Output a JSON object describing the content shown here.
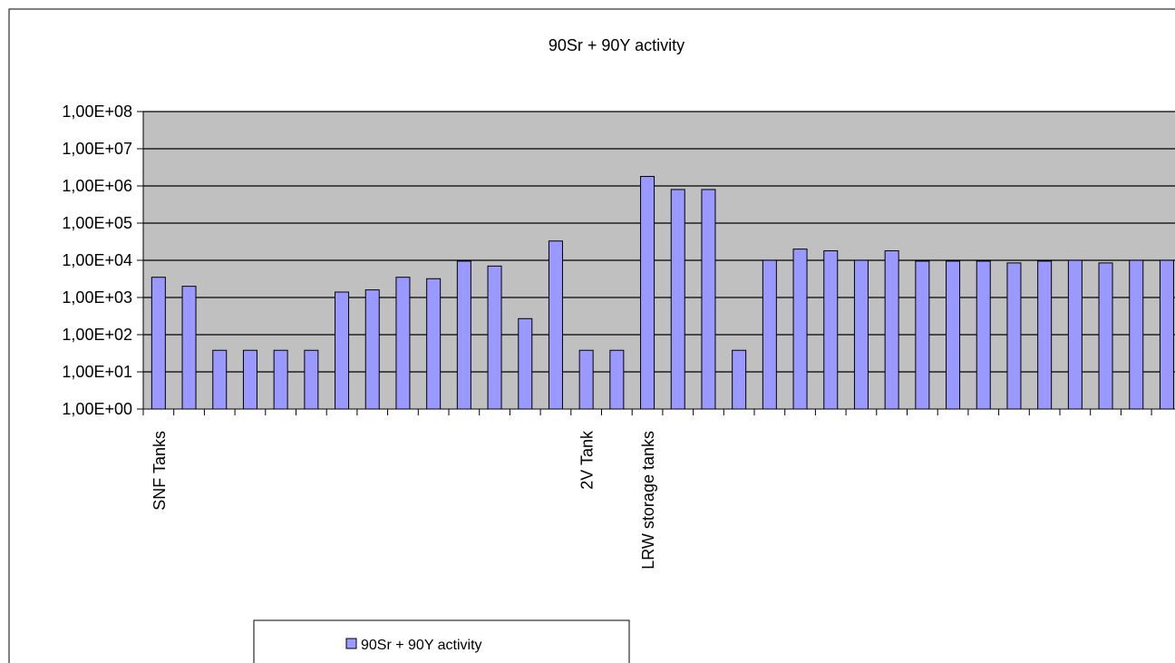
{
  "chart_data": {
    "type": "bar",
    "title": "90Sr + 90Y activity",
    "scale": "log",
    "ylim": [
      1,
      100000000
    ],
    "y_ticks": [
      "1,00E+00",
      "1,00E+01",
      "1,00E+02",
      "1,00E+03",
      "1,00E+04",
      "1,00E+05",
      "1,00E+06",
      "1,00E+07",
      "1,00E+08"
    ],
    "categories": [
      "SNF Tanks",
      "",
      "",
      "",
      "",
      "",
      "",
      "",
      "",
      "",
      "",
      "",
      "",
      "",
      "2V Tank",
      "",
      "LRW storage tanks",
      "",
      "",
      "",
      "",
      "",
      "",
      "",
      "",
      "",
      "",
      "",
      "",
      "",
      "",
      "",
      "",
      ""
    ],
    "series": [
      {
        "name": "90Sr + 90Y activity",
        "color": "#9999ff",
        "values": [
          3500,
          2000,
          38,
          38,
          38,
          38,
          1400,
          1600,
          3500,
          3200,
          9500,
          7000,
          270,
          33000,
          38,
          38,
          1800000,
          800000,
          800000,
          38,
          10000,
          20000,
          18000,
          10000,
          18000,
          9500,
          9500,
          9500,
          8500,
          9500,
          10000,
          8500,
          10000,
          10000
        ]
      }
    ],
    "legend": {
      "position": "bottom-left",
      "label": "90Sr + 90Y activity"
    },
    "plot_background": "#c0c0c0",
    "grid": true
  }
}
